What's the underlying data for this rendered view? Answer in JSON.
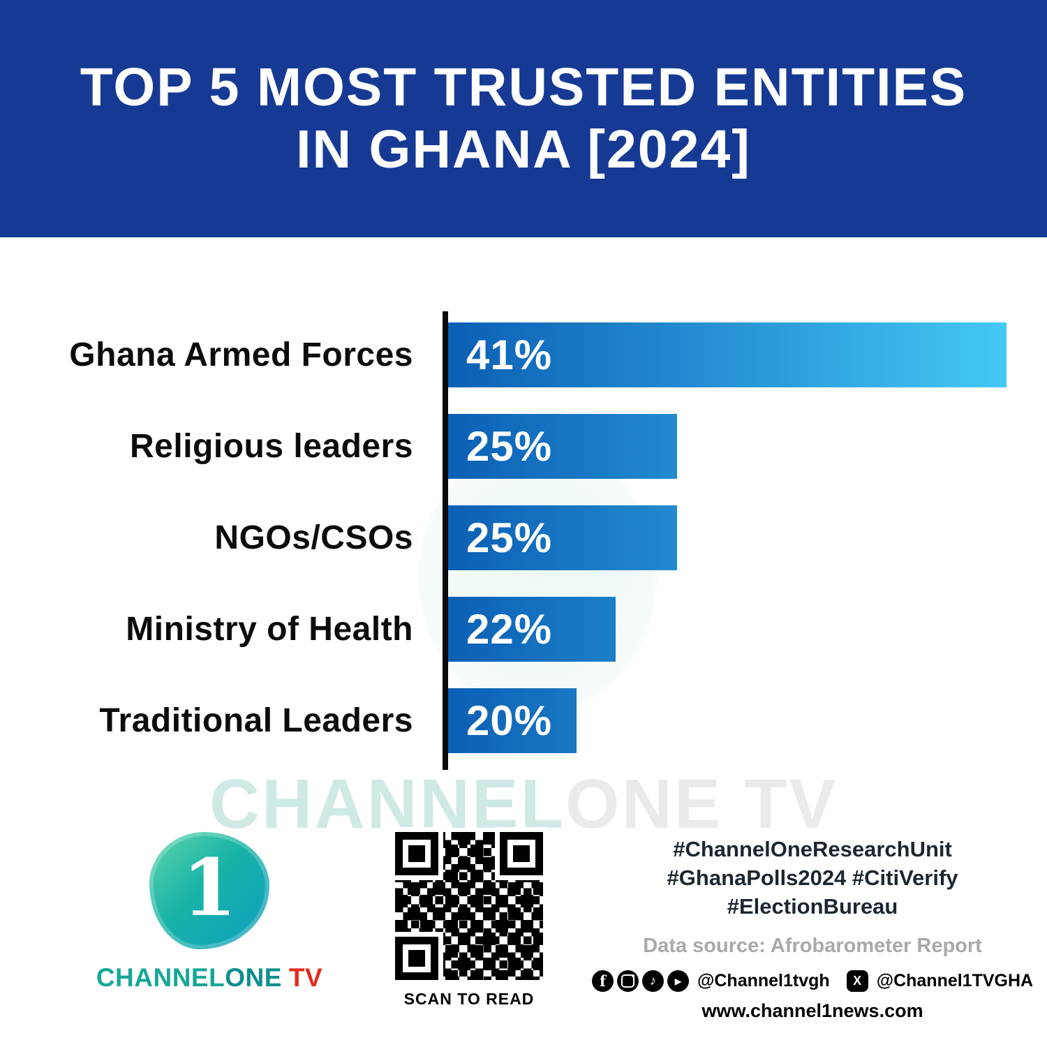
{
  "colors": {
    "header_bg": "#163a94",
    "bar_start": "#0b5fb4",
    "bar_end": "#44c8f5",
    "brand_teal": "#16a796",
    "brand_teal_dark": "#0c8f8c",
    "brand_red": "#e02b20",
    "dark_text": "#1d2630",
    "gray_text": "#a9a9a9",
    "axis_black": "#0a0a0a"
  },
  "header": {
    "title_line1": "TOP 5 MOST TRUSTED ENTITIES",
    "title_line2": "IN GHANA [2024]"
  },
  "chart_data": {
    "type": "bar",
    "orientation": "horizontal",
    "title": "Top 5 Most Trusted Entities in Ghana [2024]",
    "categories": [
      "Ghana Armed Forces",
      "Religious leaders",
      "NGOs/CSOs",
      "Ministry of Health",
      "Traditional Leaders"
    ],
    "values": [
      41,
      25,
      25,
      22,
      20
    ],
    "value_labels": [
      "41%",
      "25%",
      "25%",
      "22%",
      "20%"
    ],
    "unit": "%",
    "xlabel": "",
    "ylabel": "",
    "xlim": [
      0,
      41
    ],
    "grid": false,
    "legend": false,
    "display_width_pct": [
      100,
      41,
      41,
      30,
      23
    ]
  },
  "watermark": {
    "part1": "CHANNEL",
    "part2": "ONE TV"
  },
  "footer": {
    "logo": {
      "numeral": "1",
      "channel": "CHANNEL",
      "one": "ONE",
      "tv": "TV"
    },
    "qr_caption": "SCAN TO READ",
    "hashtags_line1": "#ChannelOneResearchUnit",
    "hashtags_line2": "#GhanaPolls2024 #CitiVerify",
    "hashtags_line3": "#ElectionBureau",
    "data_source": "Data source: Afrobarometer Report",
    "handle_meta": "@Channel1tvgh",
    "handle_x": "@Channel1TVGHA",
    "website": "www.channel1news.com"
  }
}
